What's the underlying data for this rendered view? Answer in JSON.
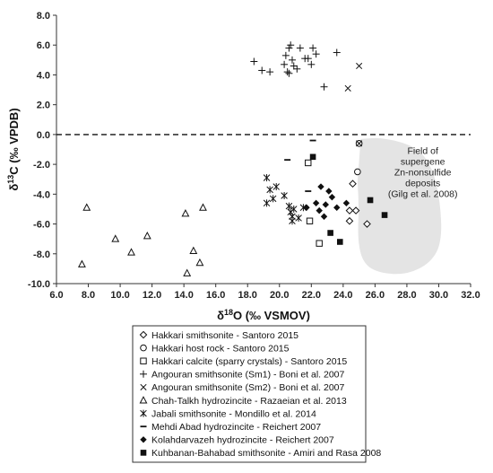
{
  "chart_data": {
    "type": "scatter",
    "xlim": [
      6.0,
      32.0
    ],
    "ylim": [
      -10.0,
      8.0
    ],
    "x_ticks": [
      "6.0",
      "8.0",
      "10.0",
      "12.0",
      "14.0",
      "16.0",
      "18.0",
      "20.0",
      "22.0",
      "24.0",
      "26.0",
      "28.0",
      "30.0",
      "32.0"
    ],
    "y_ticks": [
      "8.0",
      "6.0",
      "4.0",
      "2.0",
      "0.0",
      "-2.0",
      "-4.0",
      "-6.0",
      "-8.0",
      "-10.0"
    ],
    "xlabel_main": "δ",
    "xlabel_sup": "18",
    "xlabel_rest": "O (‰ VSMOV)",
    "ylabel_main": "δ",
    "ylabel_sup": "13",
    "ylabel_rest": "C (‰ VPDB)",
    "reference_line_y": 0.0,
    "field_label": [
      "Field of",
      "supergene",
      "Zn-nonsulfide",
      "deposits",
      "(Gilg et al. 2008)"
    ],
    "series": [
      {
        "name": "Hakkari smithsonite - Santoro 2015",
        "marker": "diamond-open",
        "points": [
          [
            24.6,
            -3.3
          ],
          [
            24.8,
            -5.1
          ],
          [
            24.4,
            -5.1
          ],
          [
            24.4,
            -5.8
          ],
          [
            25.5,
            -6.0
          ]
        ]
      },
      {
        "name": "Hakkari host rock - Santoro 2015",
        "marker": "circle-open",
        "points": [
          [
            25.0,
            -0.6
          ],
          [
            24.9,
            -2.5
          ]
        ]
      },
      {
        "name": "Hakkari calcite (sparry crystals) - Santoro 2015",
        "marker": "square-open",
        "points": [
          [
            21.8,
            -1.9
          ],
          [
            21.9,
            -5.8
          ],
          [
            22.5,
            -7.3
          ]
        ]
      },
      {
        "name": "Angouran smithsonite (Sm1) - Boni et al. 2007",
        "marker": "plus",
        "points": [
          [
            18.4,
            4.9
          ],
          [
            18.9,
            4.3
          ],
          [
            19.4,
            4.2
          ],
          [
            20.3,
            4.7
          ],
          [
            20.5,
            4.2
          ],
          [
            20.6,
            5.8
          ],
          [
            20.9,
            4.6
          ],
          [
            20.8,
            5.0
          ],
          [
            21.3,
            5.8
          ],
          [
            21.6,
            5.1
          ],
          [
            22.0,
            4.7
          ],
          [
            22.3,
            5.4
          ],
          [
            21.8,
            5.1
          ],
          [
            22.1,
            5.8
          ],
          [
            22.8,
            3.2
          ],
          [
            23.6,
            5.5
          ],
          [
            20.7,
            6.0
          ],
          [
            20.4,
            5.3
          ],
          [
            21.1,
            4.4
          ],
          [
            20.6,
            4.1
          ]
        ]
      },
      {
        "name": "Angouran smithsonite (Sm2) - Boni et al. 2007",
        "marker": "x",
        "points": [
          [
            24.3,
            3.1
          ],
          [
            25.0,
            4.6
          ],
          [
            25.0,
            -0.6
          ]
        ]
      },
      {
        "name": "Chah-Talkh hydrozincite - Razaeian et al. 2013",
        "marker": "triangle-open",
        "points": [
          [
            7.6,
            -8.7
          ],
          [
            7.9,
            -4.9
          ],
          [
            9.7,
            -7.0
          ],
          [
            10.7,
            -7.9
          ],
          [
            11.7,
            -6.8
          ],
          [
            14.1,
            -5.3
          ],
          [
            14.2,
            -9.3
          ],
          [
            14.6,
            -7.8
          ],
          [
            15.0,
            -8.6
          ],
          [
            15.2,
            -4.9
          ]
        ]
      },
      {
        "name": "Jabali smithsonite - Mondillo et al. 2014",
        "marker": "asterisk",
        "points": [
          [
            19.2,
            -2.9
          ],
          [
            19.4,
            -3.7
          ],
          [
            19.6,
            -4.3
          ],
          [
            19.8,
            -3.5
          ],
          [
            20.3,
            -4.1
          ],
          [
            20.6,
            -4.8
          ],
          [
            20.8,
            -5.5
          ],
          [
            19.2,
            -4.6
          ],
          [
            20.7,
            -5.2
          ],
          [
            20.9,
            -5.0
          ],
          [
            21.2,
            -5.6
          ],
          [
            20.8,
            -5.8
          ],
          [
            21.5,
            -4.9
          ]
        ]
      },
      {
        "name": "Mehdi Abad hydrozincite - Reichert 2007",
        "marker": "dash",
        "points": [
          [
            20.5,
            -1.7
          ],
          [
            21.8,
            -3.8
          ],
          [
            22.1,
            -0.4
          ]
        ]
      },
      {
        "name": "Kolahdarvazeh hydrozincite - Reichert 2007",
        "marker": "diamond-filled",
        "points": [
          [
            22.6,
            -3.5
          ],
          [
            23.1,
            -3.8
          ],
          [
            23.3,
            -4.2
          ],
          [
            22.9,
            -4.7
          ],
          [
            23.6,
            -4.9
          ],
          [
            24.2,
            -4.6
          ],
          [
            22.3,
            -4.6
          ],
          [
            22.5,
            -5.1
          ],
          [
            21.7,
            -4.9
          ],
          [
            22.8,
            -5.5
          ]
        ]
      },
      {
        "name": "Kuhbanan-Bahabad  smithsonite - Amiri and Rasa 2008",
        "marker": "square-filled",
        "points": [
          [
            22.1,
            -1.5
          ],
          [
            23.2,
            -6.6
          ],
          [
            23.8,
            -7.2
          ],
          [
            25.7,
            -4.4
          ],
          [
            26.6,
            -5.4
          ]
        ]
      }
    ]
  }
}
